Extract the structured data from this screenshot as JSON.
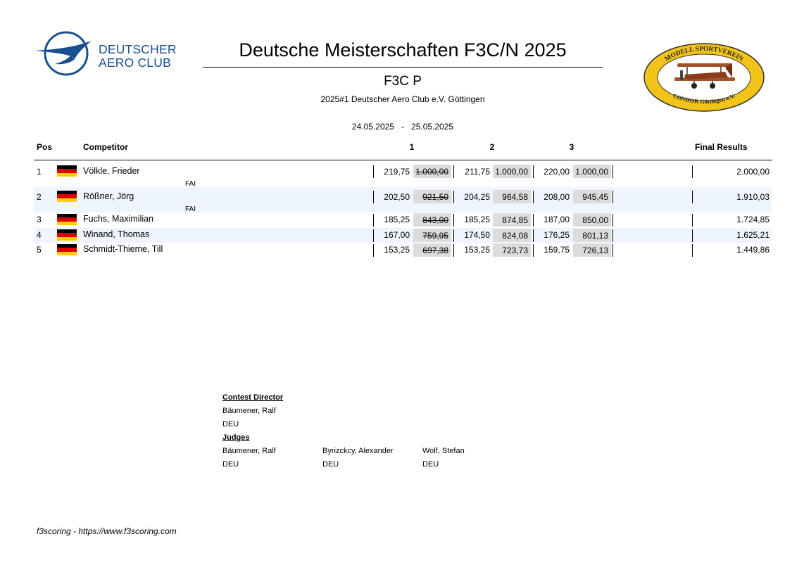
{
  "header": {
    "dac_logo_line1": "DEUTSCHER",
    "dac_logo_line2": "AERO CLUB",
    "title": "Deutsche Meisterschaften F3C/N 2025",
    "class": "F3C P",
    "contest": "2025#1 Deutscher Aero Club e.V. Göttingen",
    "date_from": "24.05.2025",
    "date_sep": "-",
    "date_to": "25.05.2025",
    "club_logo_top": "MODELL SPORTVEREIN",
    "club_logo_bottom": "CONDOR Göttingen e.V."
  },
  "table": {
    "columns": {
      "pos": "Pos",
      "competitor": "Competitor",
      "round1": "1",
      "round2": "2",
      "round3": "3",
      "final": "Final Results"
    },
    "rows": [
      {
        "pos": "1",
        "country": "DEU",
        "name": "Völkle, Frieder",
        "sub": "FAI",
        "r1_raw": "219,75",
        "r1_norm": "1.000,00",
        "r2_raw": "211,75",
        "r2_norm": "1.000,00",
        "r3_raw": "220,00",
        "r3_norm": "1.000,00",
        "final": "2.000,00",
        "dropped_round": 1
      },
      {
        "pos": "2",
        "country": "DEU",
        "name": "Rößner, Jörg",
        "sub": "FAI",
        "r1_raw": "202,50",
        "r1_norm": "921,50",
        "r2_raw": "204,25",
        "r2_norm": "964,58",
        "r3_raw": "208,00",
        "r3_norm": "945,45",
        "final": "1.910,03",
        "dropped_round": 1
      },
      {
        "pos": "3",
        "country": "DEU",
        "name": "Fuchs, Maximilian",
        "sub": "",
        "r1_raw": "185,25",
        "r1_norm": "843,00",
        "r2_raw": "185,25",
        "r2_norm": "874,85",
        "r3_raw": "187,00",
        "r3_norm": "850,00",
        "final": "1.724,85",
        "dropped_round": 1
      },
      {
        "pos": "4",
        "country": "DEU",
        "name": "Winand, Thomas",
        "sub": "",
        "r1_raw": "167,00",
        "r1_norm": "759,95",
        "r2_raw": "174,50",
        "r2_norm": "824,08",
        "r3_raw": "176,25",
        "r3_norm": "801,13",
        "final": "1.625,21",
        "dropped_round": 1
      },
      {
        "pos": "5",
        "country": "DEU",
        "name": "Schmidt-Thieme, Till",
        "sub": "",
        "r1_raw": "153,25",
        "r1_norm": "697,38",
        "r2_raw": "153,25",
        "r2_norm": "723,73",
        "r3_raw": "159,75",
        "r3_norm": "726,13",
        "final": "1.449,86",
        "dropped_round": 1
      }
    ]
  },
  "officials": {
    "director_heading": "Contest Director",
    "director": {
      "name": "Bäumener, Ralf",
      "country": "DEU"
    },
    "judges_heading": "Judges",
    "judges": [
      {
        "name": "Bäumener, Ralf",
        "country": "DEU"
      },
      {
        "name": "Byrizckcy, Alexander",
        "country": "DEU"
      },
      {
        "name": "Wolf, Stefan",
        "country": "DEU"
      }
    ]
  },
  "footer": "f3scoring - https://www.f3scoring.com",
  "colors": {
    "dac_blue": "#1a4f8f",
    "row_alt": "#eef5fc",
    "score_box": "#dcdcdc",
    "flag": [
      "#000000",
      "#dd0000",
      "#ffce00"
    ],
    "club_logo_ring": "#f2c419"
  }
}
